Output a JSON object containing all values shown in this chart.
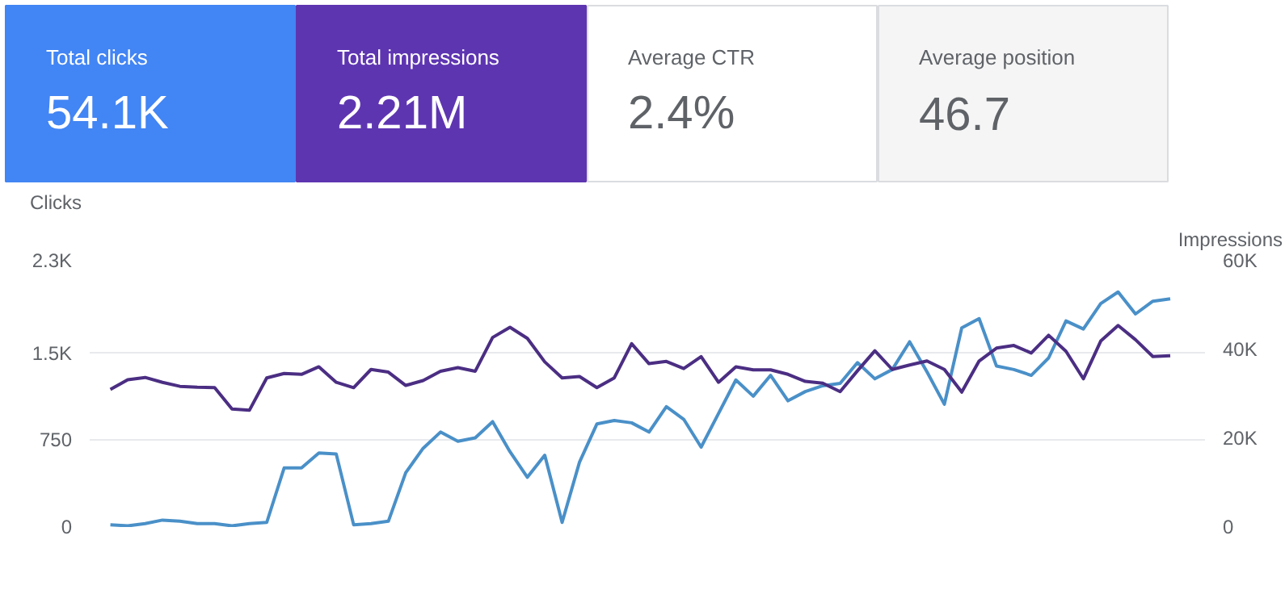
{
  "chart_data": [
    {
      "type": "other",
      "categories": [
        "Total clicks",
        "Total impressions",
        "Average CTR",
        "Average position"
      ],
      "value_labels": [
        "54.1K",
        "2.21M",
        "2.4%",
        "46.7"
      ],
      "colors": [
        "#4285f4",
        "#5e35b1",
        "#ffffff",
        "#f5f5f5"
      ]
    },
    {
      "type": "line",
      "categories": [
        null,
        null,
        null,
        null,
        null,
        null,
        null,
        null,
        null,
        null,
        null,
        null,
        null,
        null,
        null,
        null,
        null,
        null,
        null,
        null,
        null,
        null,
        null,
        null,
        null,
        null,
        null,
        null,
        null,
        null,
        null,
        null,
        null,
        null,
        null,
        null,
        null,
        null,
        null,
        null,
        null,
        null,
        null,
        null,
        null,
        null,
        null,
        null,
        null,
        null,
        null,
        null,
        null,
        null,
        null,
        null,
        null,
        null,
        null,
        null,
        null,
        null
      ],
      "ylabel": "Clicks",
      "y2label": "Impressions",
      "ylim": [
        0,
        2300
      ],
      "yticks": [
        0,
        750,
        {
          "value": 1500,
          "label": "1.5K"
        },
        {
          "value": 2300,
          "label": "2.3K"
        }
      ],
      "y2lim": [
        0,
        60000
      ],
      "y2ticks": [
        0,
        {
          "value": 20000,
          "label": "20K"
        },
        {
          "value": 40000,
          "label": "40K"
        },
        {
          "value": 60000,
          "label": "60K"
        }
      ],
      "grid": "y",
      "tick_labels": "y",
      "series": [
        {
          "color": "#4a90c8",
          "values": [
            20,
            10,
            30,
            60,
            50,
            30,
            30,
            10,
            30,
            40,
            510,
            510,
            640,
            630,
            20,
            30,
            50,
            470,
            680,
            820,
            740,
            770,
            910,
            650,
            430,
            620,
            40,
            560,
            890,
            920,
            900,
            820,
            1040,
            930,
            690,
            980,
            1270,
            1130,
            1310,
            1090,
            1170,
            1220,
            1240,
            1420,
            1280,
            1360,
            1600,
            1340,
            1060,
            1720,
            1800,
            1390,
            1360,
            1310,
            1460,
            1780,
            1710,
            1930,
            2030,
            1840,
            1950,
            1970
          ]
        },
        {
          "color": "#4b2e83",
          "axis": "y2",
          "values": [
            31000,
            33200,
            33700,
            32600,
            31700,
            31500,
            31400,
            26600,
            26300,
            33600,
            34600,
            34400,
            36100,
            32600,
            31400,
            35500,
            34900,
            31900,
            33000,
            35100,
            35900,
            35100,
            42700,
            45000,
            42500,
            37200,
            33600,
            33900,
            31400,
            33600,
            41300,
            36800,
            37300,
            35700,
            38400,
            32600,
            36100,
            35400,
            35400,
            34400,
            32800,
            32400,
            30500,
            35200,
            39700,
            35500,
            36500,
            37400,
            35500,
            30400,
            37400,
            40300,
            40900,
            39200,
            43200,
            39600,
            33400,
            41900,
            45400,
            42200,
            38400,
            38600
          ]
        }
      ]
    }
  ]
}
